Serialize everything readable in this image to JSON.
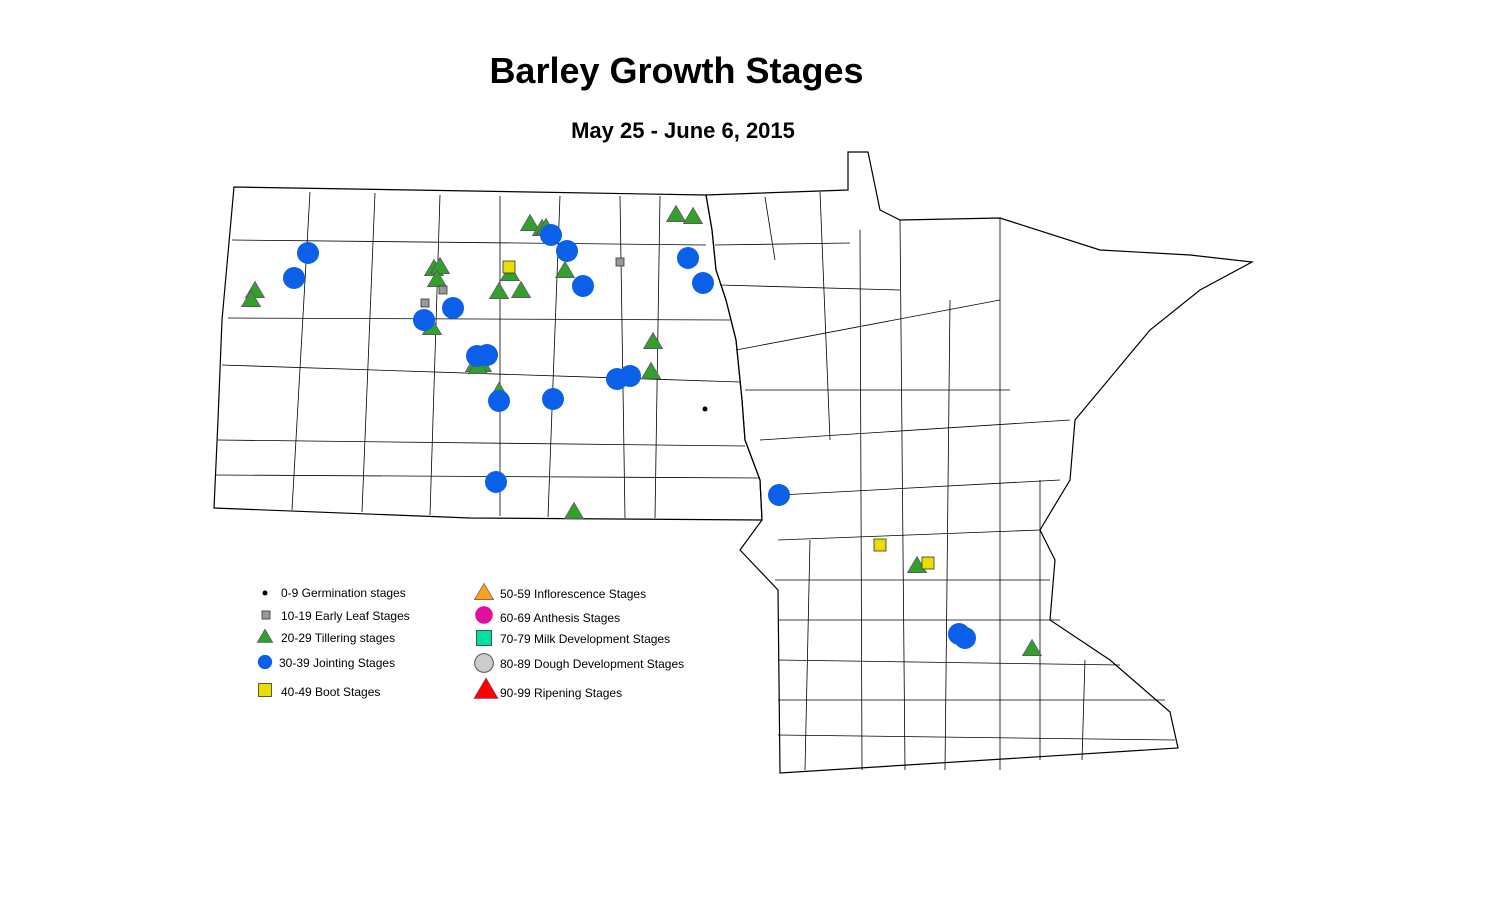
{
  "title": "Barley Growth Stages",
  "subtitle": "May 25 - June 6, 2015",
  "legend": [
    {
      "key": "germination",
      "label": "0-9 Germination stages",
      "shape": "dot",
      "color": "#000000"
    },
    {
      "key": "early_leaf",
      "label": "10-19 Early Leaf Stages",
      "shape": "square",
      "color": "#999999"
    },
    {
      "key": "tillering",
      "label": "20-29 Tillering stages",
      "shape": "triangle",
      "color": "#33a02c"
    },
    {
      "key": "jointing",
      "label": "30-39 Jointing Stages",
      "shape": "circle",
      "color": "#0b5fe8"
    },
    {
      "key": "boot",
      "label": "40-49 Boot Stages",
      "shape": "square",
      "color": "#e8e000"
    },
    {
      "key": "inflorescence",
      "label": "50-59 Inflorescence Stages",
      "shape": "triangle",
      "color": "#f7a21b"
    },
    {
      "key": "anthesis",
      "label": "60-69 Anthesis Stages",
      "shape": "circle",
      "color": "#e0109f"
    },
    {
      "key": "milk",
      "label": "70-79 Milk Development Stages",
      "shape": "square",
      "color": "#00e0a0"
    },
    {
      "key": "dough",
      "label": "80-89 Dough Development Stages",
      "shape": "circle",
      "color": "#cccccc"
    },
    {
      "key": "ripening",
      "label": "90-99 Ripening Stages",
      "shape": "triangle",
      "color": "#ff0000"
    }
  ]
}
